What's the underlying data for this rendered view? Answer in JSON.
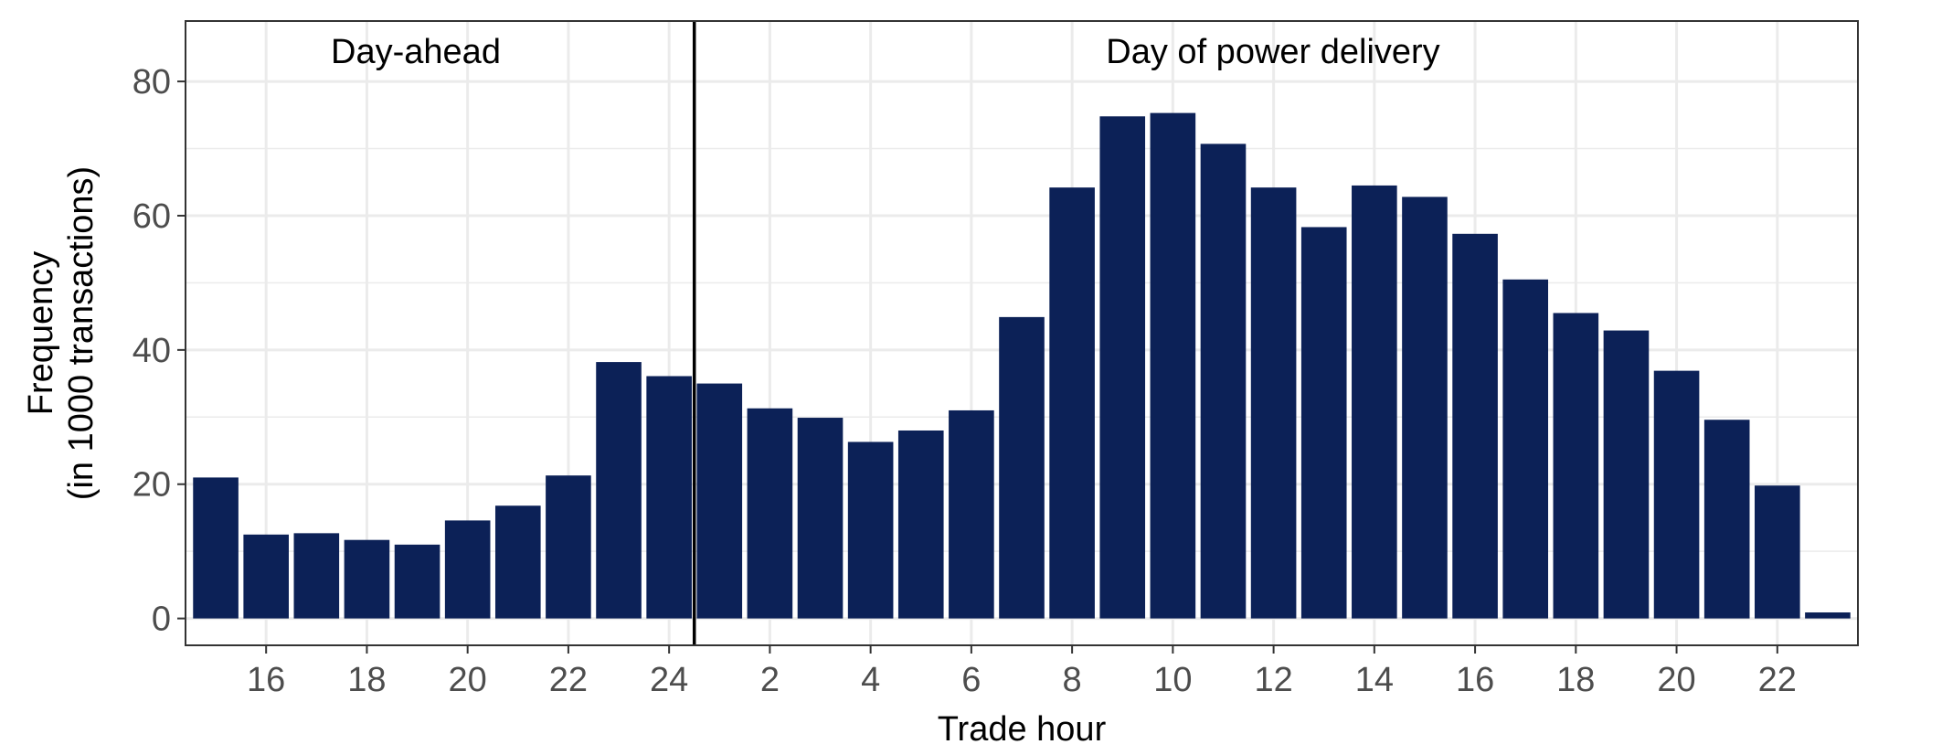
{
  "chart_data": {
    "type": "bar",
    "xlabel": "Trade hour",
    "ylabel": [
      "Frequency",
      "(in 1000 transactions)"
    ],
    "ylim": [
      -4,
      89
    ],
    "y_ticks": [
      0,
      20,
      40,
      60,
      80
    ],
    "grid": true,
    "categories": [
      "15",
      "16",
      "17",
      "18",
      "19",
      "20",
      "21",
      "22",
      "23",
      "24",
      "1",
      "2",
      "3",
      "4",
      "5",
      "6",
      "7",
      "8",
      "9",
      "10",
      "11",
      "12",
      "13",
      "14",
      "15",
      "16",
      "17",
      "18",
      "19",
      "20",
      "21",
      "22",
      "23"
    ],
    "x_tick_labels": [
      "16",
      "18",
      "20",
      "22",
      "24",
      "2",
      "4",
      "6",
      "8",
      "10",
      "12",
      "14",
      "16",
      "18",
      "20",
      "22"
    ],
    "values": [
      21,
      12.5,
      12.7,
      11.7,
      11,
      14.6,
      16.8,
      21.3,
      38.2,
      36.1,
      35,
      31.3,
      29.9,
      26.3,
      28,
      31,
      44.9,
      64.2,
      74.8,
      75.3,
      70.7,
      64.2,
      58.3,
      64.5,
      62.8,
      57.3,
      50.5,
      45.5,
      42.9,
      36.9,
      29.6,
      19.8,
      0.9
    ],
    "bar_color": "#0c2157",
    "divider": {
      "after_category_index": 9,
      "color": "#000000"
    },
    "annotations": [
      "Day-ahead",
      "Day of power delivery"
    ]
  }
}
